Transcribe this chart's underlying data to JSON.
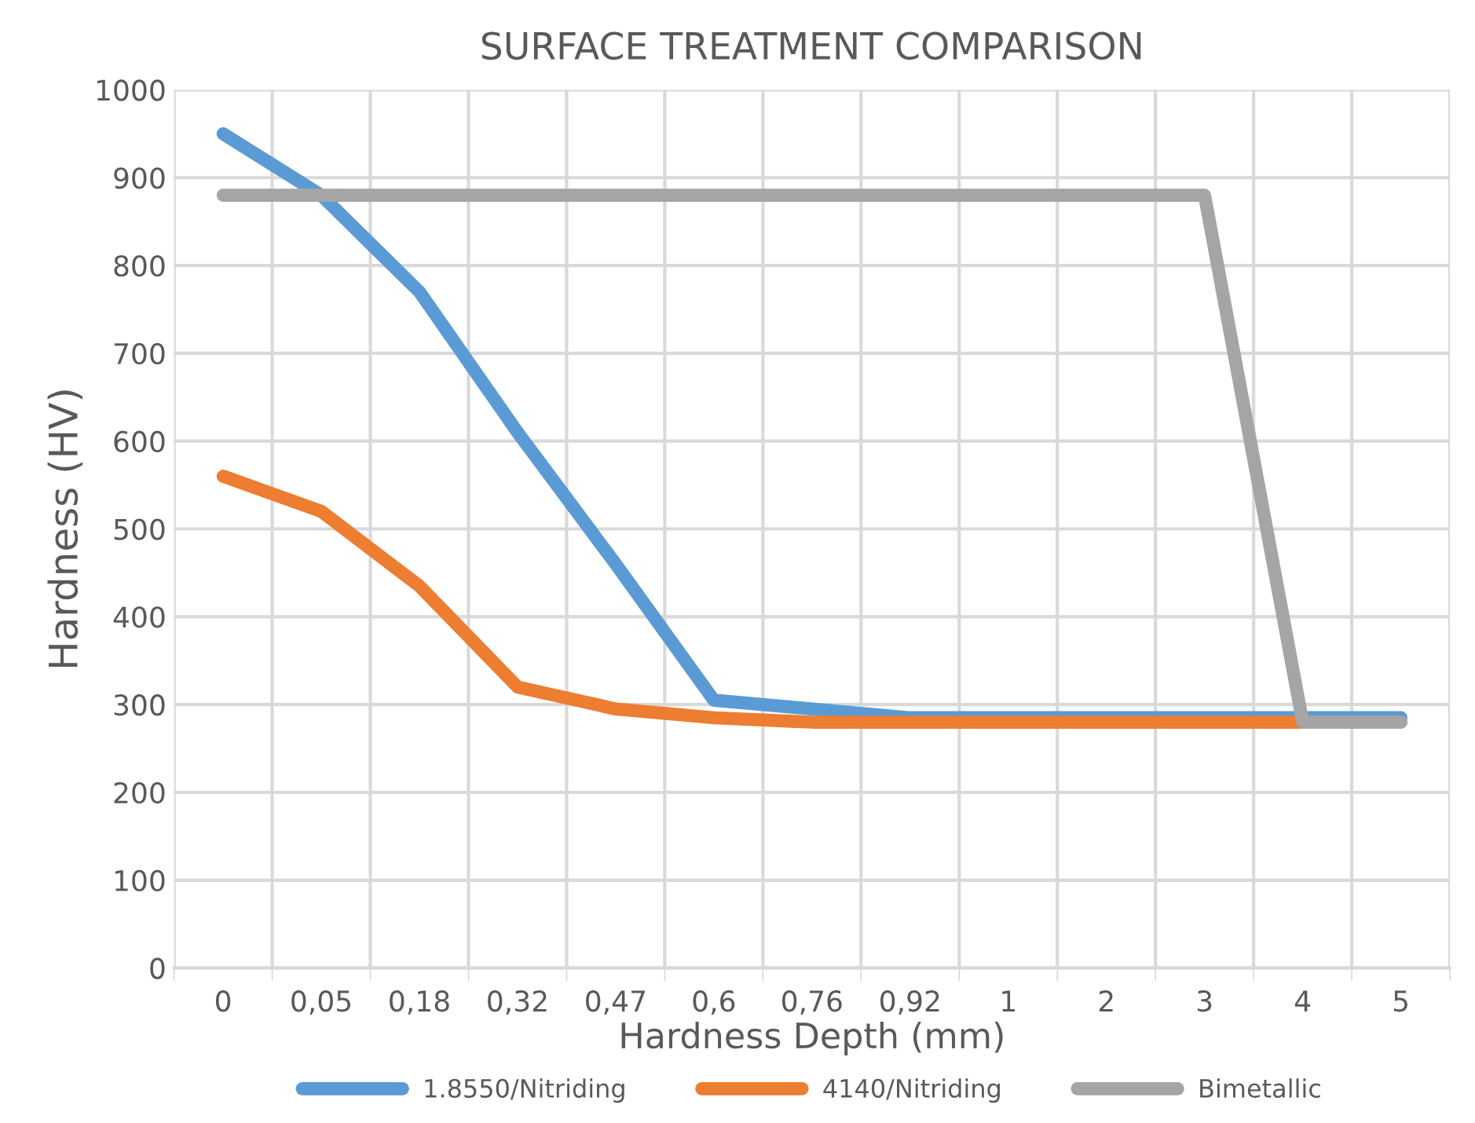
{
  "chart_data": {
    "type": "line",
    "title": "SURFACE TREATMENT COMPARISON",
    "xlabel": "Hardness Depth (mm)",
    "ylabel": "Hardness (HV)",
    "categories": [
      "0",
      "0,05",
      "0,18",
      "0,32",
      "0,47",
      "0,6",
      "0,76",
      "0,92",
      "1",
      "2",
      "3",
      "4",
      "5"
    ],
    "series": [
      {
        "name": "1.8550/Nitriding",
        "color": "#5b9bd5",
        "values": [
          950,
          880,
          770,
          610,
          460,
          305,
          295,
          285,
          285,
          285,
          285,
          285,
          285
        ]
      },
      {
        "name": "4140/Nitriding",
        "color": "#ed7d31",
        "values": [
          560,
          520,
          435,
          320,
          295,
          285,
          280,
          280,
          280,
          280,
          280,
          280,
          280
        ]
      },
      {
        "name": "Bimetallic",
        "color": "#a5a5a5",
        "values": [
          880,
          880,
          880,
          880,
          880,
          880,
          880,
          880,
          880,
          880,
          880,
          280,
          280
        ]
      }
    ],
    "ylim": [
      0,
      1000
    ],
    "yticks": [
      0,
      100,
      200,
      300,
      400,
      500,
      600,
      700,
      800,
      900,
      1000
    ],
    "grid": true,
    "legend": "bottom",
    "marker": "none",
    "line_style": "solid"
  }
}
